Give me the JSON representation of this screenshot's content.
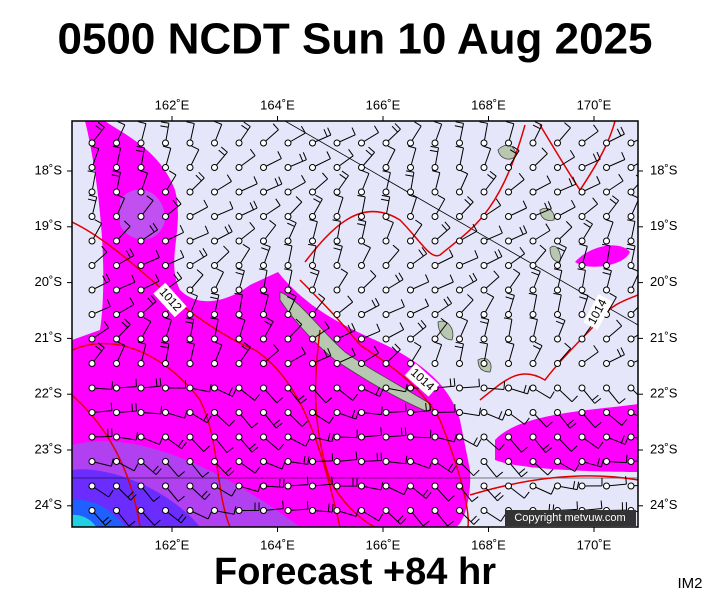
{
  "header": {
    "title": "0500 NCDT Sun 10 Aug 2025"
  },
  "map": {
    "longitude_labels": [
      "162˚E",
      "164˚E",
      "166˚E",
      "168˚E",
      "170˚E"
    ],
    "latitude_labels": [
      "18˚S",
      "19˚S",
      "20˚S",
      "21˚S",
      "22˚S",
      "23˚S",
      "24˚S"
    ],
    "isobar_labels": [
      "1012",
      "1014",
      "1014"
    ],
    "copyright": "Copyright metvuw.com"
  },
  "footer": {
    "caption": "Forecast +84 hr",
    "code": "IM2"
  }
}
